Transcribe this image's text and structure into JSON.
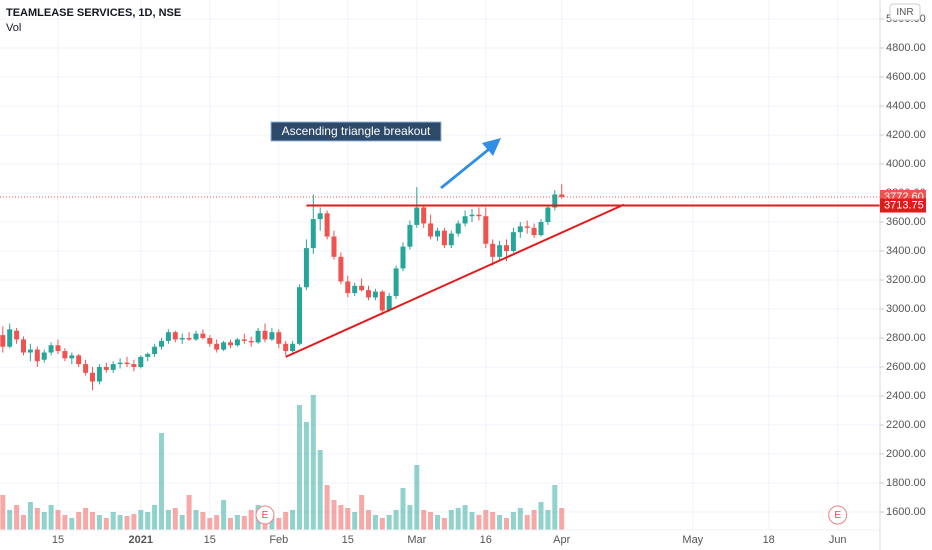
{
  "chart_data": {
    "type": "candlestick",
    "title": "TEAMLEASE SERVICES, 1D, NSE",
    "currency": "INR",
    "up_color": "#26a69a",
    "down_color": "#ef5350",
    "categories": [
      null,
      null,
      null,
      null,
      null,
      null,
      null,
      null,
      "15",
      null,
      null,
      null,
      null,
      null,
      null,
      null,
      null,
      null,
      null,
      null,
      "2021",
      null,
      null,
      null,
      null,
      null,
      null,
      null,
      null,
      null,
      "15",
      null,
      null,
      null,
      null,
      null,
      null,
      null,
      null,
      null,
      "Feb",
      null,
      null,
      null,
      null,
      null,
      null,
      null,
      null,
      null,
      "15",
      null,
      null,
      null,
      null,
      null,
      null,
      null,
      null,
      null,
      "Mar",
      null,
      null,
      null,
      null,
      null,
      null,
      null,
      null,
      null,
      "16",
      null,
      null,
      null,
      null,
      null,
      null,
      null,
      null,
      null,
      null,
      "Apr",
      null,
      null,
      null,
      null,
      null,
      null,
      null,
      null,
      null,
      null,
      null,
      null,
      null,
      null,
      null,
      null,
      null,
      null,
      "May",
      null,
      null,
      null,
      null,
      null,
      null,
      null,
      null,
      null,
      null,
      "18",
      null,
      null,
      null,
      null,
      null,
      null,
      null,
      null,
      null,
      "Jun"
    ],
    "open": [
      2820,
      2740,
      2850,
      2790,
      2700,
      2720,
      2650,
      2700,
      2750,
      2710,
      2660,
      2680,
      2620,
      2560,
      2500,
      2600,
      2580,
      2620,
      2630,
      2620,
      2600,
      2670,
      2690,
      2740,
      2780,
      2840,
      2790,
      2800,
      2790,
      2830,
      2800,
      2760,
      2720,
      2770,
      2750,
      2790,
      2780,
      2770,
      2850,
      2790,
      2840,
      2760,
      2710,
      2760,
      3150,
      3420,
      3620,
      3660,
      3500,
      3360,
      3190,
      3110,
      3160,
      3130,
      3080,
      3120,
      2990,
      3090,
      3280,
      3430,
      3580,
      3700,
      3590,
      3500,
      3540,
      3440,
      3520,
      3590,
      3640,
      3650,
      3640,
      3450,
      3360,
      3440,
      3400,
      3530,
      3570,
      3560,
      3510,
      3600,
      3700,
      3790,
      null,
      null,
      null,
      null,
      null,
      null,
      null,
      null,
      null,
      null,
      null,
      null,
      null,
      null,
      null,
      null,
      null,
      null,
      null,
      null,
      null,
      null,
      null,
      null,
      null,
      null,
      null,
      null,
      null,
      null,
      null,
      null,
      null,
      null,
      null,
      null,
      null,
      null,
      null,
      null
    ],
    "high": [
      2880,
      2900,
      2870,
      2810,
      2760,
      2740,
      2720,
      2770,
      2790,
      2730,
      2700,
      2690,
      2650,
      2600,
      2620,
      2630,
      2640,
      2660,
      2670,
      2650,
      2680,
      2700,
      2760,
      2800,
      2860,
      2850,
      2830,
      2840,
      2850,
      2860,
      2820,
      2790,
      2780,
      2790,
      2800,
      2830,
      2810,
      2870,
      2900,
      2870,
      2860,
      2780,
      2780,
      3170,
      3480,
      3790,
      3700,
      3680,
      3540,
      3390,
      3230,
      3180,
      3210,
      3160,
      3140,
      3130,
      3110,
      3300,
      3460,
      3610,
      3840,
      3720,
      3650,
      3560,
      3560,
      3540,
      3610,
      3680,
      3690,
      3700,
      3700,
      3480,
      3470,
      3480,
      3560,
      3600,
      3610,
      3590,
      3620,
      3720,
      3820,
      3860,
      null,
      null,
      null,
      null,
      null,
      null,
      null,
      null,
      null,
      null,
      null,
      null,
      null,
      null,
      null,
      null,
      null,
      null,
      null,
      null,
      null,
      null,
      null,
      null,
      null,
      null,
      null,
      null,
      null,
      null,
      null,
      null,
      null,
      null,
      null,
      null,
      null,
      null,
      null,
      null
    ],
    "low": [
      2700,
      2730,
      2760,
      2680,
      2640,
      2600,
      2630,
      2680,
      2690,
      2640,
      2620,
      2600,
      2540,
      2440,
      2480,
      2560,
      2560,
      2590,
      2600,
      2570,
      2590,
      2640,
      2670,
      2720,
      2760,
      2770,
      2760,
      2780,
      2780,
      2790,
      2740,
      2700,
      2710,
      2730,
      2740,
      2760,
      2740,
      2760,
      2770,
      2780,
      2730,
      2680,
      2700,
      2750,
      3130,
      3380,
      3540,
      3480,
      3340,
      3170,
      3080,
      3090,
      3120,
      3060,
      3060,
      2960,
      2980,
      3070,
      3260,
      3410,
      3560,
      3560,
      3480,
      3470,
      3420,
      3420,
      3500,
      3570,
      3600,
      3610,
      3420,
      3300,
      3330,
      3330,
      3390,
      3490,
      3520,
      3490,
      3500,
      3580,
      3680,
      3760,
      null,
      null,
      null,
      null,
      null,
      null,
      null,
      null,
      null,
      null,
      null,
      null,
      null,
      null,
      null,
      null,
      null,
      null,
      null,
      null,
      null,
      null,
      null,
      null,
      null,
      null,
      null,
      null,
      null,
      null,
      null,
      null,
      null,
      null,
      null,
      null,
      null,
      null,
      null,
      null
    ],
    "close": [
      2740,
      2860,
      2790,
      2700,
      2720,
      2640,
      2700,
      2750,
      2710,
      2660,
      2680,
      2620,
      2560,
      2500,
      2600,
      2580,
      2620,
      2630,
      2620,
      2600,
      2670,
      2690,
      2740,
      2780,
      2840,
      2790,
      2800,
      2790,
      2830,
      2800,
      2760,
      2720,
      2770,
      2750,
      2790,
      2780,
      2770,
      2850,
      2790,
      2840,
      2760,
      2710,
      2760,
      3150,
      3420,
      3620,
      3660,
      3500,
      3360,
      3190,
      3110,
      3160,
      3130,
      3080,
      3120,
      2990,
      3090,
      3280,
      3430,
      3580,
      3700,
      3590,
      3500,
      3540,
      3440,
      3520,
      3590,
      3640,
      3650,
      3640,
      3450,
      3360,
      3440,
      3400,
      3530,
      3570,
      3560,
      3510,
      3600,
      3700,
      3790,
      3772.6,
      null,
      null,
      null,
      null,
      null,
      null,
      null,
      null,
      null,
      null,
      null,
      null,
      null,
      null,
      null,
      null,
      null,
      null,
      null,
      null,
      null,
      null,
      null,
      null,
      null,
      null,
      null,
      null,
      null,
      null,
      null,
      null,
      null,
      null,
      null,
      null,
      null,
      null,
      null,
      null
    ],
    "volume": {
      "name": "Vol",
      "ylim": [
        0,
        150
      ],
      "values": [
        35,
        20,
        25,
        15,
        28,
        22,
        18,
        25,
        20,
        15,
        12,
        18,
        22,
        18,
        15,
        12,
        18,
        15,
        14,
        16,
        20,
        18,
        25,
        97,
        20,
        22,
        15,
        35,
        20,
        18,
        12,
        15,
        30,
        12,
        15,
        14,
        20,
        25,
        22,
        15,
        12,
        18,
        20,
        125,
        108,
        135,
        80,
        45,
        30,
        25,
        22,
        18,
        35,
        20,
        15,
        12,
        15,
        20,
        42,
        25,
        65,
        20,
        18,
        15,
        12,
        20,
        22,
        25,
        18,
        15,
        20,
        18,
        15,
        12,
        18,
        22,
        15,
        20,
        28,
        20,
        45,
        22,
        null,
        null,
        null,
        null,
        null,
        null,
        null,
        null,
        null,
        null,
        null,
        null,
        null,
        null,
        null,
        null,
        null,
        null,
        null,
        null,
        null,
        null,
        null,
        null,
        null,
        null,
        null,
        null,
        null,
        null,
        null,
        null,
        null,
        null,
        null,
        null,
        null,
        null,
        null,
        null
      ]
    },
    "ylim": [
      1476,
      5131
    ],
    "yticks": [
      {
        "value": 1600,
        "label": "1600.00"
      },
      {
        "value": 1800,
        "label": "1800.00"
      },
      {
        "value": 2000,
        "label": "2000.00"
      },
      {
        "value": 2200,
        "label": "2200.00"
      },
      {
        "value": 2400,
        "label": "2400.00"
      },
      {
        "value": 2600,
        "label": "2600.00"
      },
      {
        "value": 2800,
        "label": "2800.00"
      },
      {
        "value": 3000,
        "label": "3000.00"
      },
      {
        "value": 3200,
        "label": "3200.00"
      },
      {
        "value": 3400,
        "label": "3400.00"
      },
      {
        "value": 3600,
        "label": "3600.00"
      },
      {
        "value": 3800,
        "label": "3800.00"
      },
      {
        "value": 4000,
        "label": "4000.00"
      },
      {
        "value": 4200,
        "label": "4200.00"
      },
      {
        "value": 4400,
        "label": "4400.00"
      },
      {
        "value": 4600,
        "label": "4600.00"
      },
      {
        "value": 4800,
        "label": "4800.00"
      },
      {
        "value": 5000,
        "label": "5000.00"
      }
    ],
    "grid": true,
    "last_price": {
      "value": 3772.6,
      "label": "3772.60"
    },
    "horizontal_line": {
      "value": 3713.75,
      "label": "3713.75",
      "start_index": 44,
      "color": "#e41a1a"
    },
    "trendline": {
      "start": {
        "index": 41,
        "price": 2670
      },
      "end": {
        "index": 90,
        "price": 3720
      },
      "color": "#e41a1a"
    },
    "annotation": "Ascending triangle breakout",
    "events": [
      {
        "index": 38,
        "label": "E"
      },
      {
        "index": 121,
        "label": "E"
      }
    ]
  }
}
